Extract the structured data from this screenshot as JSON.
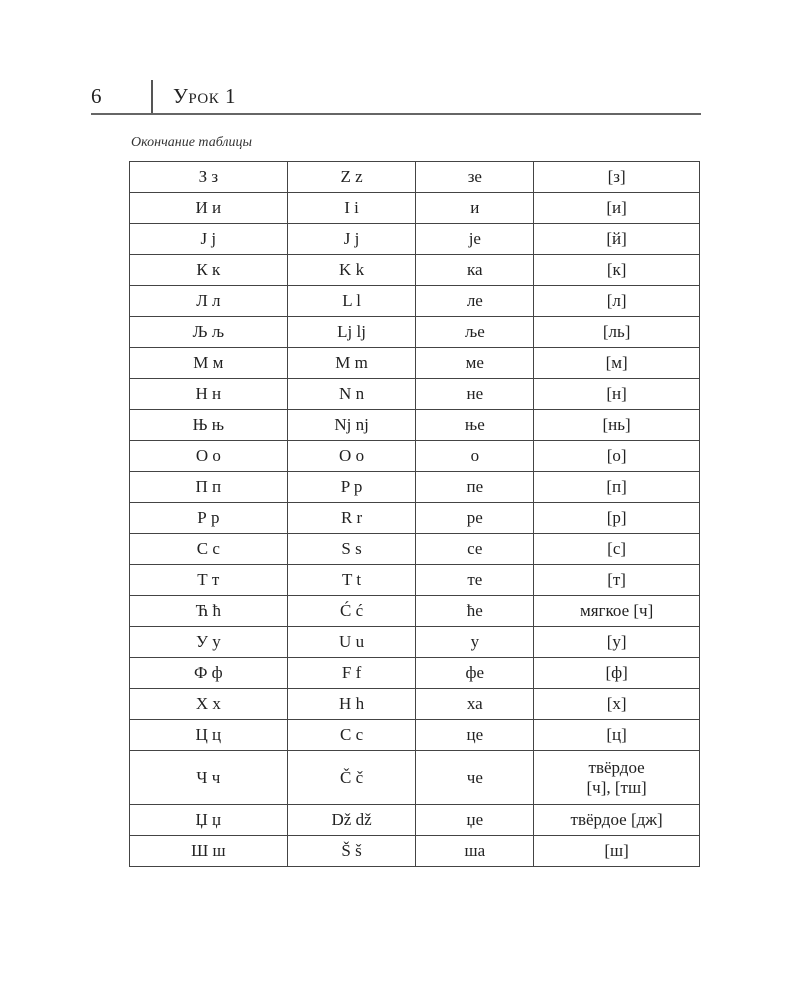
{
  "header": {
    "page_number": "6",
    "running_head": "Урок 1"
  },
  "caption": "Окончание таблицы",
  "table": {
    "rows": [
      [
        "З з",
        "Z z",
        "зе",
        "[з]"
      ],
      [
        "И и",
        "I i",
        "и",
        "[и]"
      ],
      [
        "J j",
        "J j",
        "je",
        "[й]"
      ],
      [
        "К к",
        "K k",
        "ка",
        "[к]"
      ],
      [
        "Л л",
        "L l",
        "ле",
        "[л]"
      ],
      [
        "Љ љ",
        "Lj lj",
        "ље",
        "[ль]"
      ],
      [
        "М м",
        "M m",
        "ме",
        "[м]"
      ],
      [
        "Н н",
        "N n",
        "не",
        "[н]"
      ],
      [
        "Њ њ",
        "Nj nj",
        "ње",
        "[нь]"
      ],
      [
        "О о",
        "O o",
        "о",
        "[о]"
      ],
      [
        "П п",
        "P p",
        "пе",
        "[п]"
      ],
      [
        "Р р",
        "R r",
        "ре",
        "[р]"
      ],
      [
        "С с",
        "S s",
        "се",
        "[с]"
      ],
      [
        "Т т",
        "T t",
        "те",
        "[т]"
      ],
      [
        "Ћ ћ",
        "Ć ć",
        "ће",
        "мягкое [ч]"
      ],
      [
        "У у",
        "U u",
        "у",
        "[у]"
      ],
      [
        "Ф ф",
        "F f",
        "фе",
        "[ф]"
      ],
      [
        "Х х",
        "H h",
        "ха",
        "[х]"
      ],
      [
        "Ц ц",
        "C c",
        "це",
        "[ц]"
      ],
      [
        "Ч ч",
        "Č č",
        "че",
        "твёрдое\n[ч], [тш]"
      ],
      [
        "Џ џ",
        "Dž dž",
        "џе",
        "твёрдое [дж]"
      ],
      [
        "Ш ш",
        "Š š",
        "ша",
        "[ш]"
      ]
    ]
  }
}
